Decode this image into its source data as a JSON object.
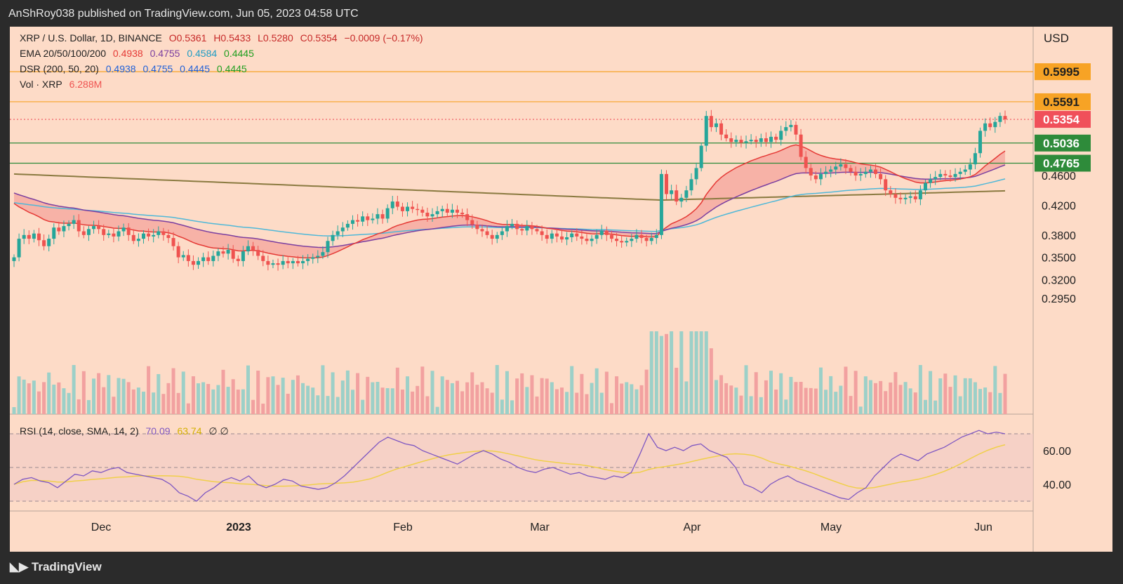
{
  "header": {
    "publisher_line": "AnShRoy038 published on TradingView.com, Jun 05, 2023 04:58 UTC"
  },
  "footer": {
    "brand": "TradingView",
    "logo_icon": "tradingview-logo-icon"
  },
  "legend": {
    "symbol": "XRP / U.S. Dollar, 1D, BINANCE",
    "o": "O0.5361",
    "h": "H0.5433",
    "l": "L0.5280",
    "c": "C0.5354",
    "chg": "−0.0009 (−0.17%)",
    "ema_label": "EMA 20/50/100/200",
    "ema_vals": [
      "0.4938",
      "0.4755",
      "0.4584",
      "0.4445"
    ],
    "dsr_label": "DSR (200, 50, 20)",
    "dsr_vals": [
      "0.4938",
      "0.4755",
      "0.4445",
      "0.4445"
    ],
    "vol_label": "Vol · XRP",
    "vol_val": "6.288M",
    "rsi_label": "RSI (14, close, SMA, 14, 2)",
    "rsi_val": "70.09",
    "rsi_sma": "63.74",
    "rsi_extra": "∅ ∅"
  },
  "colors": {
    "background": "#fddbc7",
    "up": "#26a69a",
    "down": "#ef5350",
    "ema20": "#e53935",
    "ema50": "#7b3fa0",
    "ema100": "#4fb8d8",
    "ema200": "#2bb02b",
    "rsi": "#7e57c2",
    "rsi_sma": "#f0d04a"
  },
  "chart_data": {
    "type": "candlestick",
    "title": "XRP / U.S. Dollar, 1D, BINANCE",
    "currency": "USD",
    "price_ticks": [
      "0.4600",
      "0.4200",
      "0.3800",
      "0.3500",
      "0.3200",
      "0.2950"
    ],
    "horizontal_levels": [
      {
        "value": "0.5995",
        "color": "#f7a325",
        "text_color": "#1f1f1f"
      },
      {
        "value": "0.5591",
        "color": "#f7a325",
        "text_color": "#1f1f1f"
      },
      {
        "value": "0.5354",
        "color": "#f0505a",
        "text_color": "#ffffff"
      },
      {
        "value": "0.5036",
        "color": "#2e8b3a",
        "text_color": "#ffffff"
      },
      {
        "value": "0.4765",
        "color": "#2e8b3a",
        "text_color": "#ffffff"
      }
    ],
    "x_labels": [
      "Dec",
      "2023",
      "Feb",
      "Mar",
      "Apr",
      "May",
      "Jun"
    ],
    "rsi_ticks": [
      "60.00",
      "40.00"
    ],
    "rsi_levels": [
      70,
      50,
      30
    ],
    "approx_closes": [
      0.35,
      0.375,
      0.38,
      0.375,
      0.382,
      0.373,
      0.365,
      0.375,
      0.39,
      0.385,
      0.392,
      0.395,
      0.4,
      0.385,
      0.38,
      0.388,
      0.392,
      0.388,
      0.38,
      0.382,
      0.378,
      0.385,
      0.39,
      0.38,
      0.372,
      0.375,
      0.382,
      0.378,
      0.38,
      0.385,
      0.38,
      0.376,
      0.365,
      0.35,
      0.353,
      0.345,
      0.34,
      0.345,
      0.35,
      0.345,
      0.352,
      0.358,
      0.355,
      0.36,
      0.348,
      0.345,
      0.358,
      0.365,
      0.36,
      0.352,
      0.345,
      0.34,
      0.342,
      0.34,
      0.345,
      0.342,
      0.345,
      0.342,
      0.345,
      0.348,
      0.35,
      0.352,
      0.357,
      0.372,
      0.38,
      0.385,
      0.39,
      0.395,
      0.4,
      0.398,
      0.405,
      0.4,
      0.402,
      0.408,
      0.402,
      0.416,
      0.425,
      0.418,
      0.412,
      0.418,
      0.415,
      0.414,
      0.41,
      0.405,
      0.408,
      0.412,
      0.415,
      0.41,
      0.414,
      0.41,
      0.408,
      0.4,
      0.394,
      0.388,
      0.385,
      0.38,
      0.375,
      0.38,
      0.385,
      0.392,
      0.395,
      0.388,
      0.386,
      0.392,
      0.388,
      0.385,
      0.38,
      0.375,
      0.382,
      0.378,
      0.374,
      0.377,
      0.382,
      0.378,
      0.375,
      0.372,
      0.375,
      0.38,
      0.386,
      0.38,
      0.375,
      0.372,
      0.37,
      0.372,
      0.375,
      0.38,
      0.376,
      0.372,
      0.376,
      0.38,
      0.462,
      0.435,
      0.44,
      0.425,
      0.43,
      0.44,
      0.455,
      0.47,
      0.5,
      0.54,
      0.525,
      0.53,
      0.515,
      0.51,
      0.505,
      0.508,
      0.504,
      0.506,
      0.508,
      0.505,
      0.51,
      0.505,
      0.512,
      0.508,
      0.52,
      0.525,
      0.528,
      0.515,
      0.485,
      0.47,
      0.46,
      0.455,
      0.462,
      0.465,
      0.468,
      0.472,
      0.475,
      0.47,
      0.465,
      0.46,
      0.462,
      0.465,
      0.468,
      0.462,
      0.455,
      0.44,
      0.435,
      0.43,
      0.428,
      0.43,
      0.432,
      0.428,
      0.44,
      0.45,
      0.455,
      0.458,
      0.462,
      0.46,
      0.458,
      0.462,
      0.465,
      0.468,
      0.475,
      0.49,
      0.52,
      0.53,
      0.525,
      0.532,
      0.54,
      0.5354
    ],
    "approx_rsi_values": [
      40,
      43,
      44,
      42,
      41,
      38,
      42,
      46,
      45,
      48,
      47,
      49,
      50,
      47,
      46,
      45,
      44,
      43,
      40,
      35,
      33,
      30,
      35,
      38,
      42,
      44,
      42,
      45,
      40,
      38,
      40,
      43,
      42,
      39,
      38,
      37,
      38,
      41,
      45,
      50,
      55,
      60,
      65,
      68,
      66,
      64,
      63,
      60,
      58,
      56,
      54,
      52,
      55,
      58,
      60,
      58,
      55,
      53,
      50,
      48,
      47,
      49,
      50,
      48,
      46,
      47,
      45,
      44,
      43,
      45,
      44,
      47,
      58,
      70,
      62,
      60,
      62,
      60,
      63,
      64,
      60,
      58,
      56,
      50,
      40,
      38,
      35,
      40,
      43,
      45,
      42,
      40,
      38,
      36,
      34,
      32,
      31,
      35,
      38,
      45,
      50,
      55,
      58,
      56,
      54,
      58,
      60,
      62,
      65,
      68,
      70,
      72,
      70,
      71,
      70
    ]
  }
}
